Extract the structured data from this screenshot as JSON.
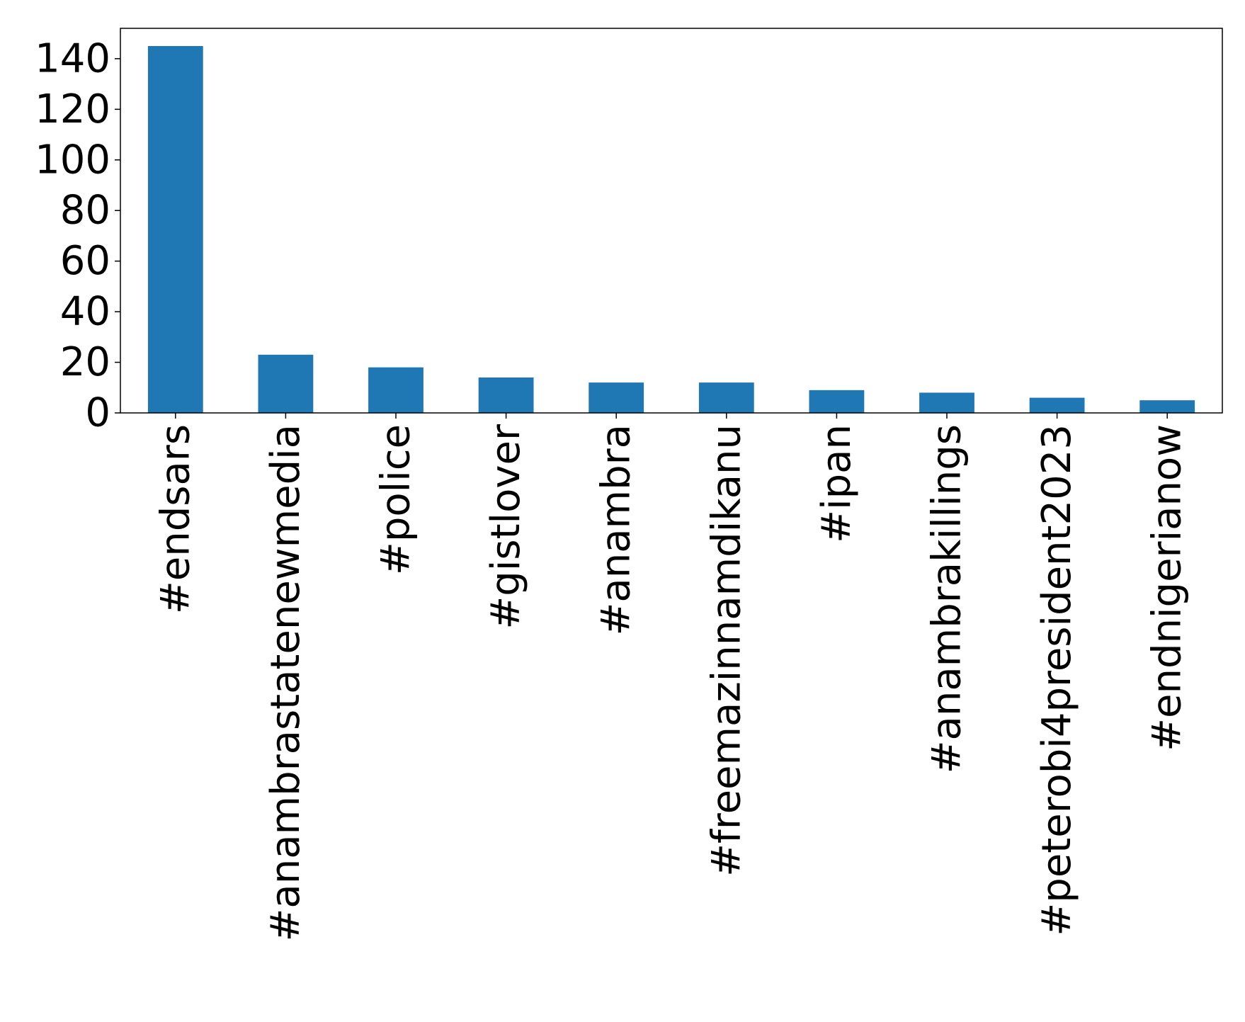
{
  "chart_data": {
    "type": "bar",
    "title": "",
    "xlabel": "",
    "ylabel": "",
    "categories": [
      "#endsars",
      "#anambrastatenewmedia",
      "#police",
      "#gistlover",
      "#anambra",
      "#freemazinnamdikanu",
      "#ipan",
      "#anambrakillings",
      "#peterobi4president2023",
      "#endnigerianow"
    ],
    "values": [
      145,
      23,
      18,
      14,
      12,
      12,
      9,
      8,
      6,
      5
    ],
    "ylim": [
      0,
      152
    ],
    "yticks": [
      0,
      20,
      40,
      60,
      80,
      100,
      120,
      140
    ],
    "grid": false,
    "legend": "none",
    "bar_color": "#1f77b4"
  }
}
